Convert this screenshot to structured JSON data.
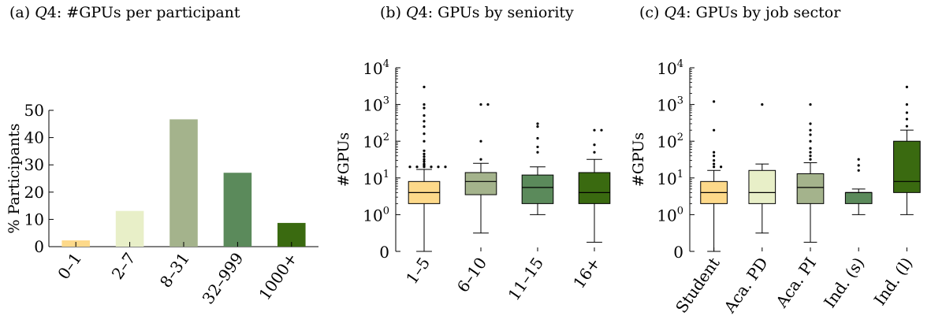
{
  "chart_data": [
    {
      "id": "a",
      "type": "bar",
      "title_prefix": "(a) ",
      "title_q": "Q",
      "title_rest": "4: #GPUs per participant",
      "ylabel": "% Participants",
      "ylim": [
        0,
        50
      ],
      "yticks": [
        0,
        10,
        20,
        30,
        40,
        50
      ],
      "categories": [
        "0–1",
        "2–7",
        "8–31",
        "32–999",
        "1000+"
      ],
      "values": [
        2.3,
        13.1,
        46.7,
        27.1,
        8.7
      ],
      "colors": [
        "#fdd98a",
        "#e8efc8",
        "#a4b38c",
        "#5b8a5b",
        "#3a6a10"
      ]
    },
    {
      "id": "b",
      "type": "box",
      "title_prefix": "(b) ",
      "title_q": "Q",
      "title_rest": "4: GPUs by seniority",
      "ylabel": "#GPUs",
      "scale": "symlog",
      "yticks": [
        0,
        1,
        10,
        100,
        1000,
        10000
      ],
      "ytick_labels": [
        {
          "base": "0",
          "exp": ""
        },
        {
          "base": "10",
          "exp": "0"
        },
        {
          "base": "10",
          "exp": "1"
        },
        {
          "base": "10",
          "exp": "2"
        },
        {
          "base": "10",
          "exp": "3"
        },
        {
          "base": "10",
          "exp": "4"
        }
      ],
      "categories": [
        "1–5",
        "6–10",
        "11–15",
        "16+"
      ],
      "colors": [
        "#fdd98a",
        "#a4b38c",
        "#5b8a5b",
        "#3a6a10"
      ],
      "boxes": [
        {
          "whisker_low": 0,
          "q1": 2,
          "median": 4,
          "q3": 8,
          "whisker_high": 17,
          "outliers": [
            20,
            20,
            20,
            20,
            20,
            20,
            22,
            24,
            28,
            32,
            38,
            45,
            55,
            100,
            160,
            250,
            350,
            500,
            800,
            1000,
            3000
          ]
        },
        {
          "whisker_low": 0.5,
          "q1": 3.5,
          "median": 8,
          "q3": 14,
          "whisker_high": 25,
          "outliers": [
            32,
            100,
            1000,
            1000
          ]
        },
        {
          "whisker_low": 1,
          "q1": 2,
          "median": 5.5,
          "q3": 12,
          "whisker_high": 20,
          "outliers": [
            50,
            70,
            120,
            250,
            300
          ]
        },
        {
          "whisker_low": 0.25,
          "q1": 2,
          "median": 4,
          "q3": 14,
          "whisker_high": 32,
          "outliers": [
            50,
            80,
            200,
            200
          ]
        }
      ]
    },
    {
      "id": "c",
      "type": "box",
      "title_prefix": "(c) ",
      "title_q": "Q",
      "title_rest": "4: GPUs by job sector",
      "ylabel": "#GPUs",
      "scale": "symlog",
      "yticks": [
        0,
        1,
        10,
        100,
        1000,
        10000
      ],
      "ytick_labels": [
        {
          "base": "0",
          "exp": ""
        },
        {
          "base": "10",
          "exp": "0"
        },
        {
          "base": "10",
          "exp": "1"
        },
        {
          "base": "10",
          "exp": "2"
        },
        {
          "base": "10",
          "exp": "3"
        },
        {
          "base": "10",
          "exp": "4"
        }
      ],
      "categories": [
        "Student",
        "Aca. PD",
        "Aca. PI",
        "Ind. (s)",
        "Ind. (l)"
      ],
      "colors": [
        "#fdd98a",
        "#e8efc8",
        "#a4b38c",
        "#5b8a5b",
        "#3a6a10"
      ],
      "boxes": [
        {
          "whisker_low": 0,
          "q1": 2,
          "median": 4,
          "q3": 8,
          "whisker_high": 16,
          "outliers": [
            20,
            20,
            24,
            30,
            40,
            50,
            200,
            1200
          ]
        },
        {
          "whisker_low": 0.5,
          "q1": 2,
          "median": 4,
          "q3": 16,
          "whisker_high": 24,
          "outliers": [
            1000
          ]
        },
        {
          "whisker_low": 0.25,
          "q1": 2,
          "median": 5.5,
          "q3": 13,
          "whisker_high": 26,
          "outliers": [
            32,
            40,
            50,
            64,
            100,
            150,
            200,
            300,
            1000
          ]
        },
        {
          "whisker_low": 1,
          "q1": 2,
          "median": 4,
          "q3": 4,
          "whisker_high": 5,
          "outliers": [
            16,
            22,
            32
          ]
        },
        {
          "whisker_low": 1,
          "q1": 4,
          "median": 8,
          "q3": 100,
          "whisker_high": 200,
          "outliers": [
            256,
            400,
            600,
            1000,
            3000
          ]
        }
      ]
    }
  ]
}
